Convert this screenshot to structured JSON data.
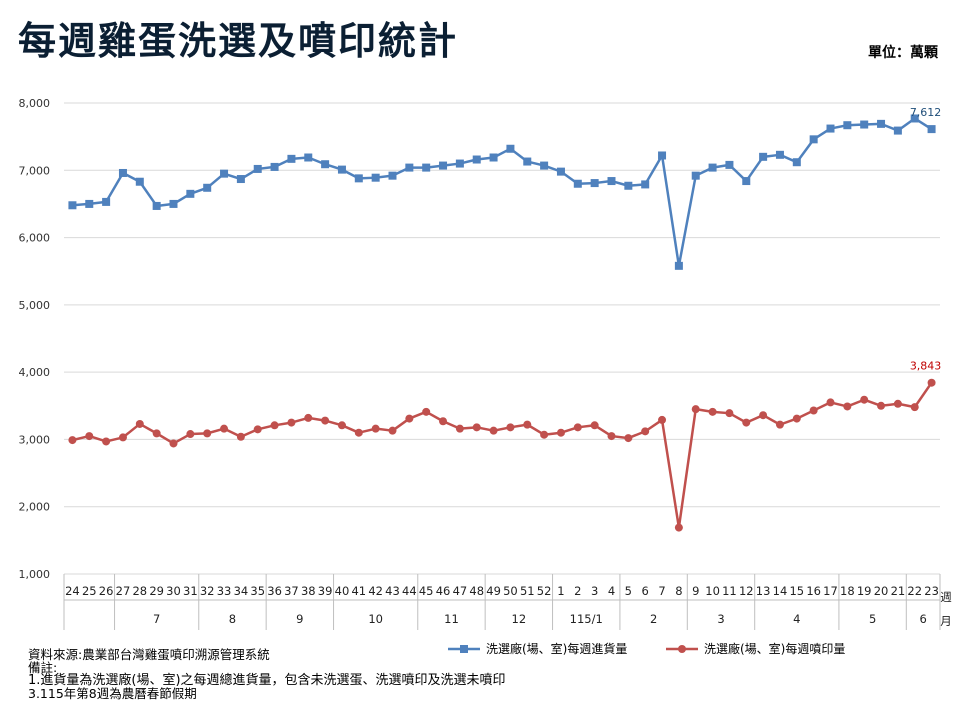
{
  "title": "每週雞蛋洗選及噴印統計",
  "unit": "單位：萬顆",
  "notes": [
    "資料來源:農業部台灣雞蛋噴印溯源管理系統",
    "備註:",
    "1.進貨量為洗選廠(場、室)之每週總進貨量，包含未洗選蛋、洗選噴印及洗選未噴印",
    "3.115年第8週為農曆春節假期"
  ],
  "chart_data": {
    "type": "line",
    "title": "每週雞蛋洗選及噴印統計",
    "ylabel": "",
    "xlabel": "週/月",
    "ylim": [
      1000,
      8000
    ],
    "yticks": [
      "1,000",
      "2,000",
      "3,000",
      "4,000",
      "5,000",
      "6,000",
      "7,000",
      "8,000"
    ],
    "grid": true,
    "legend_position": "bottom",
    "x_axis_end_labels": [
      "週",
      "月"
    ],
    "weeks": [
      "24",
      "25",
      "26",
      "27",
      "28",
      "29",
      "30",
      "31",
      "32",
      "33",
      "34",
      "35",
      "36",
      "37",
      "38",
      "39",
      "40",
      "41",
      "42",
      "43",
      "44",
      "45",
      "46",
      "47",
      "48",
      "49",
      "50",
      "51",
      "52",
      "1",
      "2",
      "3",
      "4",
      "5",
      "6",
      "7",
      "8",
      "9",
      "10",
      "11",
      "12",
      "13",
      "14",
      "15",
      "16",
      "17",
      "18",
      "19",
      "20",
      "21",
      "22",
      "23"
    ],
    "months": [
      {
        "label": "",
        "start": 0,
        "end": 2
      },
      {
        "label": "7",
        "start": 3,
        "end": 7
      },
      {
        "label": "8",
        "start": 8,
        "end": 11
      },
      {
        "label": "9",
        "start": 12,
        "end": 15
      },
      {
        "label": "10",
        "start": 16,
        "end": 20
      },
      {
        "label": "11",
        "start": 21,
        "end": 24
      },
      {
        "label": "12",
        "start": 25,
        "end": 28
      },
      {
        "label": "115/1",
        "start": 29,
        "end": 32
      },
      {
        "label": "2",
        "start": 33,
        "end": 36
      },
      {
        "label": "3",
        "start": 37,
        "end": 40
      },
      {
        "label": "4",
        "start": 41,
        "end": 45
      },
      {
        "label": "5",
        "start": 46,
        "end": 49
      },
      {
        "label": "6",
        "start": 50,
        "end": 51
      }
    ],
    "series": [
      {
        "name": "洗選廠(場、室)每週進貨量",
        "color": "#4f81bd",
        "marker": "square",
        "last_label": "7,612",
        "values": [
          6480,
          6500,
          6530,
          6960,
          6830,
          6470,
          6500,
          6650,
          6740,
          6950,
          6870,
          7020,
          7050,
          7170,
          7190,
          7090,
          7010,
          6880,
          6890,
          6920,
          7040,
          7040,
          7070,
          7100,
          7160,
          7190,
          7320,
          7130,
          7070,
          6980,
          6800,
          6810,
          6840,
          6770,
          6790,
          7220,
          5580,
          6920,
          7040,
          7080,
          6840,
          7200,
          7230,
          7120,
          7460,
          7620,
          7670,
          7680,
          7690,
          7590,
          7770,
          7612
        ]
      },
      {
        "name": "洗選廠(場、室)每週噴印量",
        "color": "#c0504d",
        "marker": "circle",
        "last_label": "3,843",
        "values": [
          2990,
          3050,
          2970,
          3030,
          3230,
          3090,
          2940,
          3080,
          3090,
          3160,
          3040,
          3150,
          3210,
          3250,
          3320,
          3280,
          3210,
          3100,
          3160,
          3130,
          3310,
          3410,
          3270,
          3160,
          3180,
          3130,
          3180,
          3220,
          3070,
          3100,
          3180,
          3210,
          3050,
          3020,
          3120,
          3290,
          1690,
          3450,
          3410,
          3390,
          3250,
          3360,
          3220,
          3310,
          3430,
          3550,
          3490,
          3590,
          3500,
          3530,
          3480,
          3843
        ]
      }
    ]
  }
}
